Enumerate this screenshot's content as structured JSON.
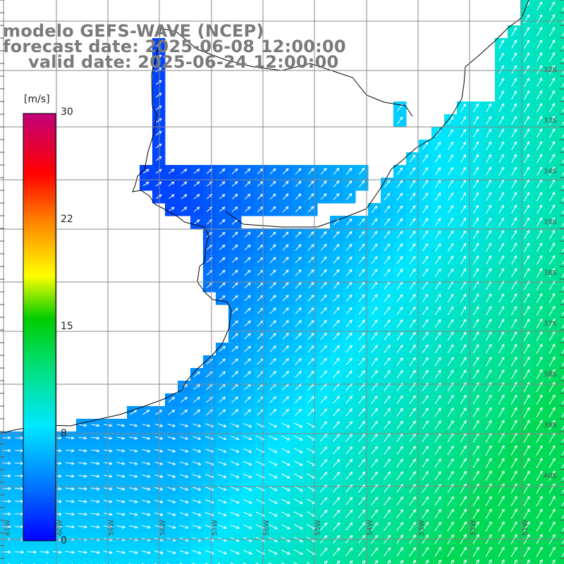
{
  "title": {
    "line1": "modelo GEFS-WAVE (NCEP)",
    "line2": "forecast date: 2025-06-08 12:00:00",
    "line3": "valid date: 2025-06-24 12:00:00"
  },
  "colorbar": {
    "unit": "[m/s]",
    "ticks": [
      "30",
      "22",
      "15",
      "8",
      "0"
    ],
    "tick_values": [
      30,
      22,
      15,
      8,
      0
    ],
    "colors": [
      "#0000ff",
      "#0088ff",
      "#00e0ff",
      "#00dd00",
      "#ffff00",
      "#ff8800",
      "#ff0000",
      "#c0006a"
    ]
  },
  "lat_labels": [
    "32S",
    "33S",
    "34S",
    "35S",
    "36S",
    "37S",
    "38S",
    "39S",
    "40S"
  ],
  "lon_labels": [
    "61W",
    "60W",
    "59W",
    "58W",
    "57W",
    "56W",
    "55W",
    "54W",
    "53W",
    "52W",
    "51W"
  ],
  "field": {
    "variable": "wind speed",
    "typical_range_ms": [
      2,
      12
    ],
    "wind_direction": "from southwest toward northeast offshore"
  }
}
